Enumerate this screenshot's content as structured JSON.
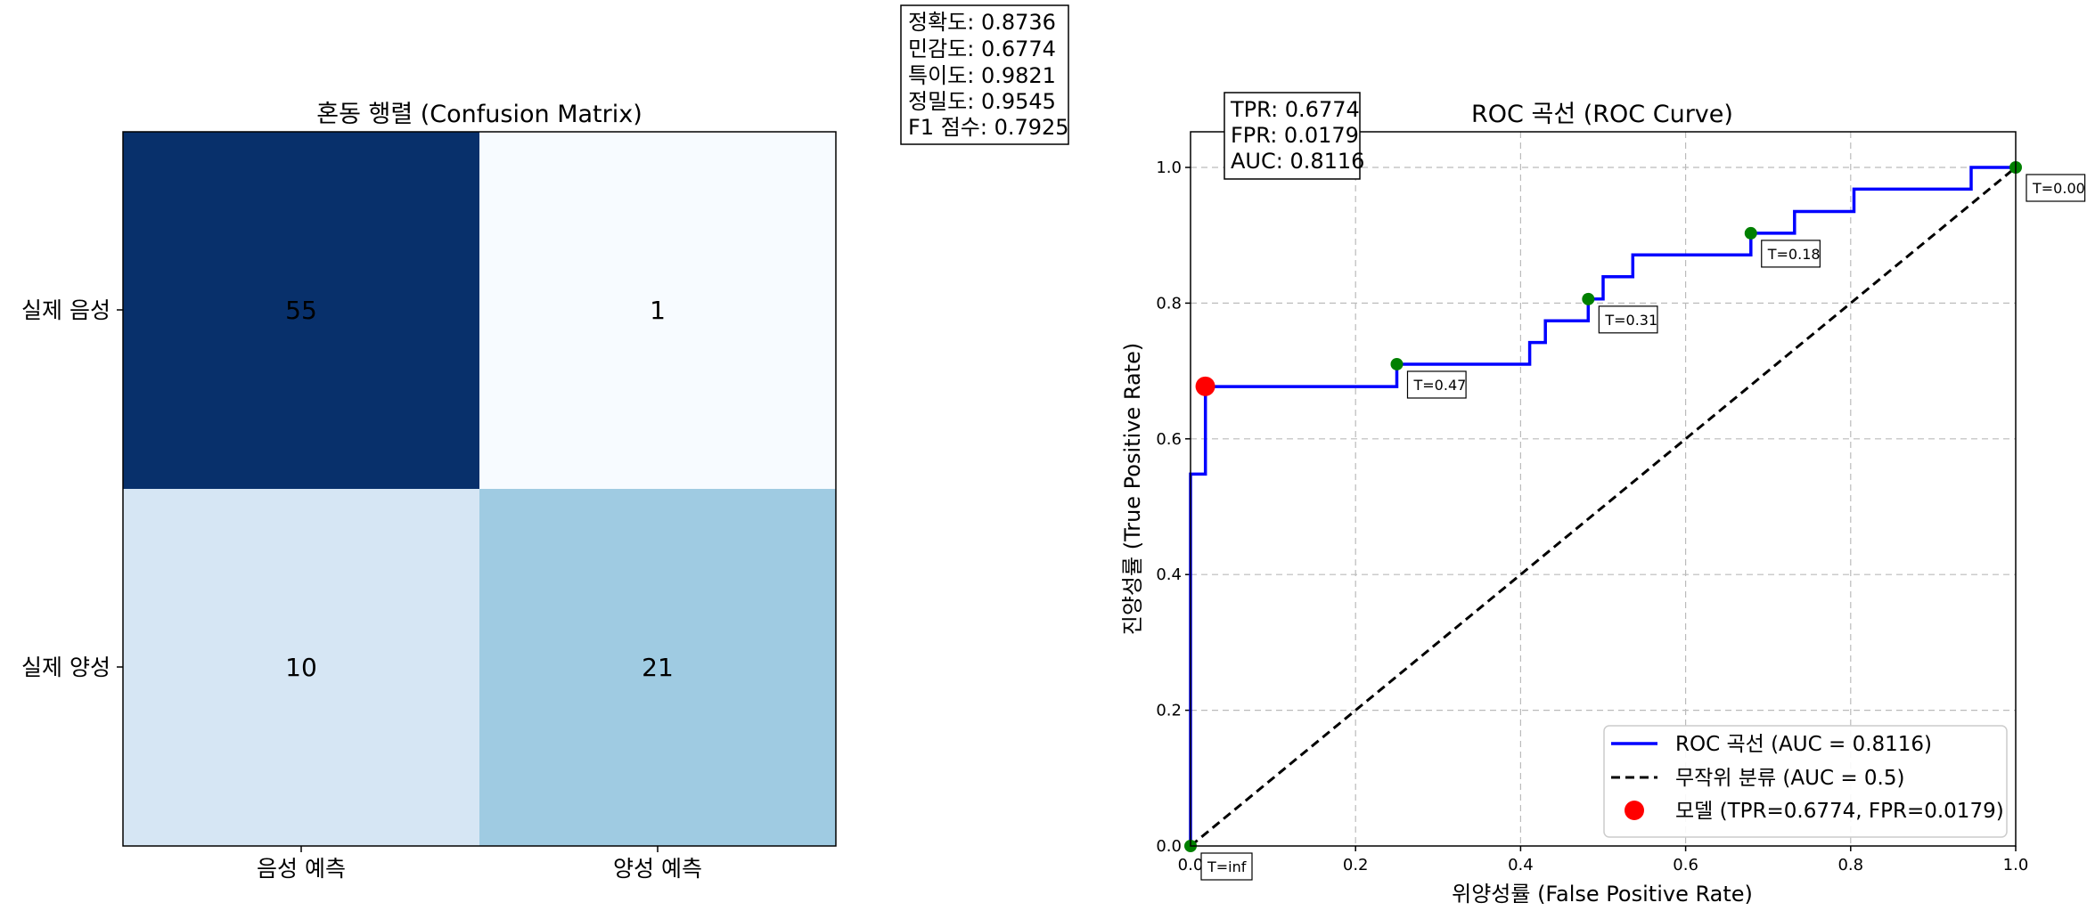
{
  "chart_data": [
    {
      "type": "heatmap",
      "title": "혼동 행렬 (Confusion Matrix)",
      "row_labels": [
        "실제 음성",
        "실제 양성"
      ],
      "col_labels": [
        "음성 예측",
        "양성 예측"
      ],
      "values": [
        [
          55,
          1
        ],
        [
          10,
          21
        ]
      ],
      "colormap": "Blues",
      "metrics_box": [
        "정확도: 0.8736",
        "민감도: 0.6774",
        "특이도: 0.9821",
        "정밀도: 0.9545",
        "F1 점수: 0.7925"
      ]
    },
    {
      "type": "line",
      "title": "ROC 곡선 (ROC Curve)",
      "xlabel": "위양성률 (False Positive Rate)",
      "ylabel": "진양성률 (True Positive Rate)",
      "xlim": [
        0,
        1
      ],
      "ylim": [
        0,
        1.02
      ],
      "xticks": [
        "0.0",
        "0.2",
        "0.4",
        "0.6",
        "0.8",
        "1.0"
      ],
      "yticks": [
        "0.0",
        "0.2",
        "0.4",
        "0.6",
        "0.8",
        "1.0"
      ],
      "grid": true,
      "legend_position": "bottom-right",
      "series": [
        {
          "name": "ROC 곡선 (AUC = 0.8116)",
          "color": "#0000ff",
          "style": "step",
          "x": [
            0,
            0,
            0,
            0.018,
            0.018,
            0.25,
            0.25,
            0.411,
            0.411,
            0.43,
            0.43,
            0.482,
            0.482,
            0.5,
            0.5,
            0.536,
            0.536,
            0.679,
            0.679,
            0.732,
            0.732,
            0.804,
            0.804,
            0.946,
            0.946,
            1.0
          ],
          "y": [
            0,
            0.548,
            0.548,
            0.548,
            0.677,
            0.677,
            0.71,
            0.71,
            0.742,
            0.742,
            0.774,
            0.774,
            0.806,
            0.806,
            0.839,
            0.839,
            0.871,
            0.871,
            0.903,
            0.903,
            0.935,
            0.935,
            0.968,
            0.968,
            1.0,
            1.0
          ]
        },
        {
          "name": "무작위 분류 (AUC = 0.5)",
          "color": "#000000",
          "style": "dashed",
          "x": [
            0,
            1
          ],
          "y": [
            0,
            1
          ]
        }
      ],
      "model_point": {
        "name": "모델 (TPR=0.6774, FPR=0.0179)",
        "x": 0.0179,
        "y": 0.6774,
        "color": "#ff0000"
      },
      "threshold_points": [
        {
          "label": "T=inf",
          "x": 0,
          "y": 0
        },
        {
          "label": "T=0.47",
          "x": 0.25,
          "y": 0.71
        },
        {
          "label": "T=0.31",
          "x": 0.482,
          "y": 0.806
        },
        {
          "label": "T=0.18",
          "x": 0.679,
          "y": 0.903
        },
        {
          "label": "T=0.00",
          "x": 1.0,
          "y": 1.0
        }
      ],
      "threshold_point_color": "#008000",
      "info_box": [
        "TPR: 0.6774",
        "FPR: 0.0179",
        "AUC: 0.8116"
      ]
    }
  ]
}
